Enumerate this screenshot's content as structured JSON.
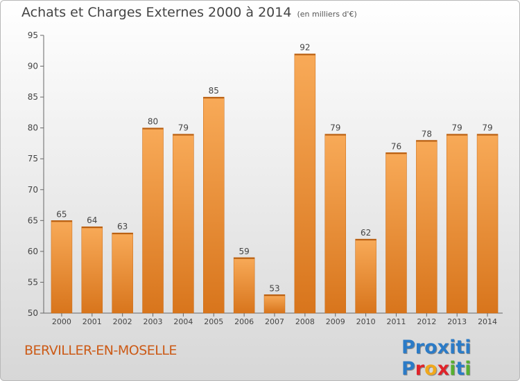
{
  "header": {
    "title": "Achats et Charges Externes 2000 à 2014",
    "subtitle": "(en milliers d'€)"
  },
  "footer": {
    "city": "BERVILLER-EN-MOSELLE",
    "logo_text": "Proxiti"
  },
  "colors": {
    "bar_top": "#f8aa58",
    "bar_bottom": "#d8751c",
    "city_text": "#cc5a16"
  },
  "chart_data": {
    "type": "bar",
    "categories": [
      "2000",
      "2001",
      "2002",
      "2003",
      "2004",
      "2005",
      "2006",
      "2007",
      "2008",
      "2009",
      "2010",
      "2011",
      "2012",
      "2013",
      "2014"
    ],
    "values": [
      65,
      64,
      63,
      80,
      79,
      85,
      59,
      53,
      92,
      79,
      62,
      76,
      78,
      79,
      79
    ],
    "title": "Achats et Charges Externes 2000 à 2014",
    "ylim": [
      50,
      95
    ],
    "yticks": [
      50,
      55,
      60,
      65,
      70,
      75,
      80,
      85,
      90,
      95
    ],
    "grid": false,
    "data_labels": true
  }
}
